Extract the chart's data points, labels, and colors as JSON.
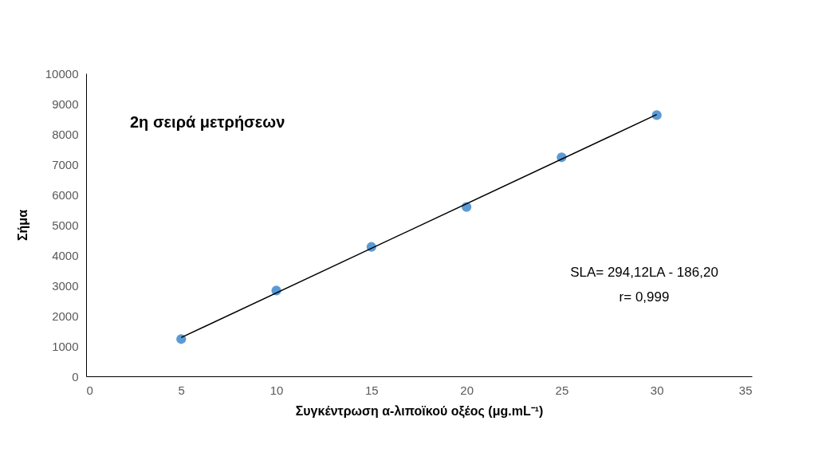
{
  "chart_data": {
    "type": "scatter",
    "title": "2η σειρά μετρήσεων",
    "xlabel": "Συγκέντρωση  α-λιποϊκού οξέος (μg.mL⁻¹)",
    "ylabel": "Σήμα",
    "x": [
      5,
      10,
      15,
      20,
      25,
      30
    ],
    "series": [
      {
        "color": "#5b9bd5",
        "values": [
          1230,
          2830,
          4270,
          5590,
          7230,
          8620
        ],
        "marker": "circle"
      },
      {
        "type": "line",
        "color": "#000000",
        "x": [
          5,
          30
        ],
        "values": [
          1280,
          8640
        ],
        "line_style": "solid"
      }
    ],
    "annotations": [
      {
        "text": "SLA= 294,12LA - 186,20"
      },
      {
        "text": "r= 0,999"
      }
    ],
    "xlim": [
      0,
      35
    ],
    "xticks": [
      0,
      5,
      10,
      15,
      20,
      25,
      30,
      35
    ],
    "ylim": [
      0,
      10000
    ],
    "yticks": [
      0,
      1000,
      2000,
      3000,
      4000,
      5000,
      6000,
      7000,
      8000,
      9000,
      10000
    ],
    "grid": false
  }
}
